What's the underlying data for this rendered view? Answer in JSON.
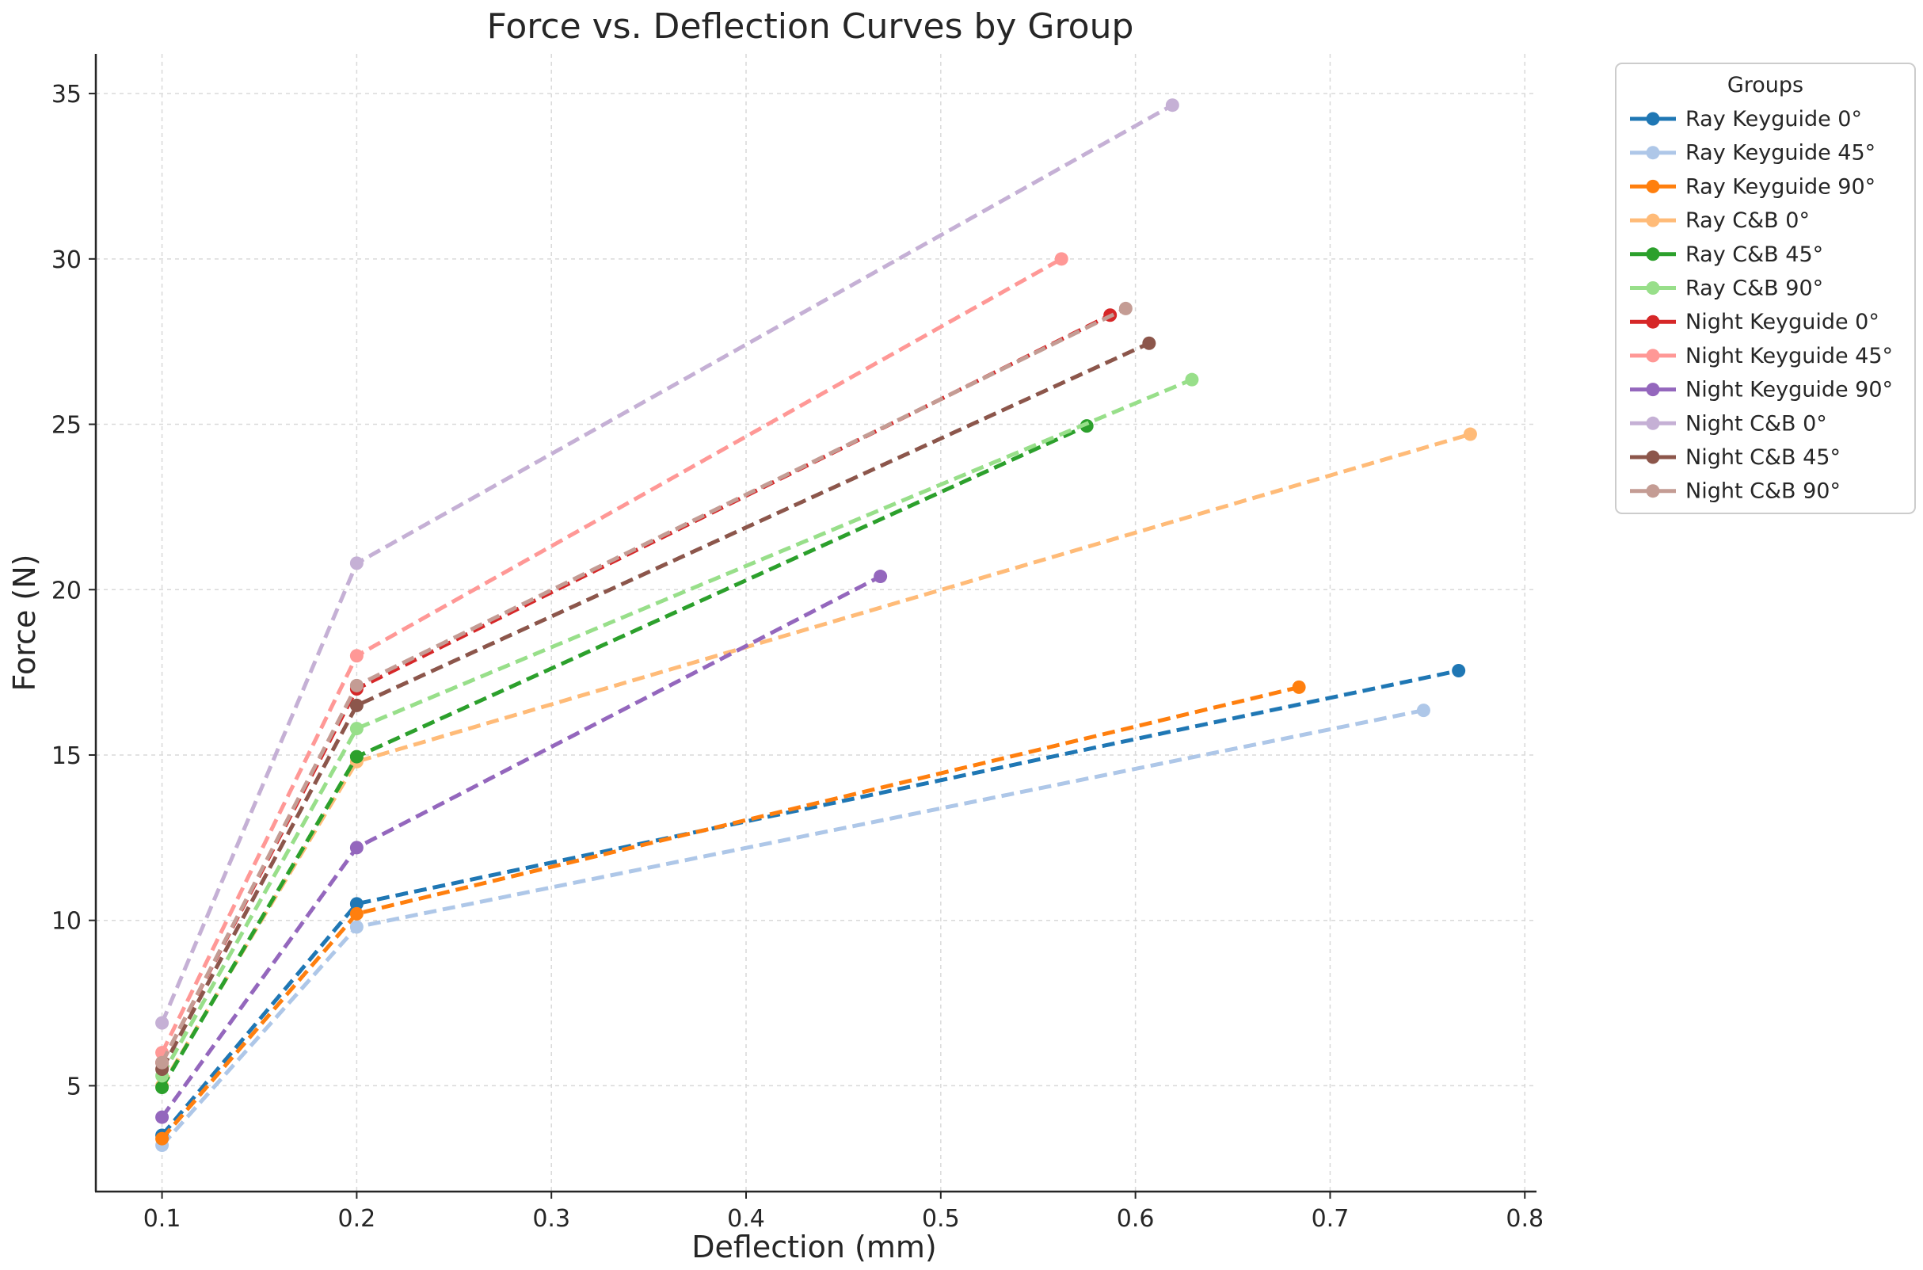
{
  "chart_data": {
    "type": "line",
    "title": "Force vs. Deflection Curves by Group",
    "xlabel": "Deflection (mm)",
    "ylabel": "Force (N)",
    "xlim": [
      0.066,
      0.806
    ],
    "ylim": [
      1.8,
      36.2
    ],
    "xticks": [
      0.1,
      0.2,
      0.3,
      0.4,
      0.5,
      0.6,
      0.7,
      0.8
    ],
    "xtick_labels": [
      "0.1",
      "0.2",
      "0.3",
      "0.4",
      "0.5",
      "0.6",
      "0.7",
      "0.8"
    ],
    "yticks": [
      5,
      10,
      15,
      20,
      25,
      30,
      35
    ],
    "ytick_labels": [
      "5",
      "10",
      "15",
      "20",
      "25",
      "30",
      "35"
    ],
    "grid": true,
    "legend": {
      "title": "Groups",
      "position": "right-top"
    },
    "series": [
      {
        "name": "Ray Keyguide 0°",
        "color": "#1f77b4",
        "x": [
          0.1,
          0.2,
          0.766
        ],
        "y": [
          3.5,
          10.5,
          17.55
        ]
      },
      {
        "name": "Ray Keyguide 45°",
        "color": "#aec7e8",
        "x": [
          0.1,
          0.2,
          0.748
        ],
        "y": [
          3.2,
          9.8,
          16.35
        ]
      },
      {
        "name": "Ray Keyguide 90°",
        "color": "#ff7f0e",
        "x": [
          0.1,
          0.2,
          0.684
        ],
        "y": [
          3.4,
          10.2,
          17.05
        ]
      },
      {
        "name": "Ray C&B 0°",
        "color": "#ffbb78",
        "x": [
          0.1,
          0.2,
          0.772
        ],
        "y": [
          5.0,
          14.8,
          24.7
        ]
      },
      {
        "name": "Ray C&B 45°",
        "color": "#2ca02c",
        "x": [
          0.1,
          0.2,
          0.575
        ],
        "y": [
          4.95,
          14.95,
          24.95
        ]
      },
      {
        "name": "Ray C&B 90°",
        "color": "#98df8a",
        "x": [
          0.1,
          0.2,
          0.629
        ],
        "y": [
          5.3,
          15.8,
          26.35
        ]
      },
      {
        "name": "Night Keyguide 0°",
        "color": "#d62728",
        "x": [
          0.1,
          0.2,
          0.587
        ],
        "y": [
          5.7,
          17.0,
          28.3
        ]
      },
      {
        "name": "Night Keyguide 45°",
        "color": "#ff9896",
        "x": [
          0.1,
          0.2,
          0.562
        ],
        "y": [
          6.0,
          18.0,
          30.0
        ]
      },
      {
        "name": "Night Keyguide 90°",
        "color": "#9467bd",
        "x": [
          0.1,
          0.2,
          0.469
        ],
        "y": [
          4.05,
          12.2,
          20.4
        ]
      },
      {
        "name": "Night C&B 0°",
        "color": "#c5b0d5",
        "x": [
          0.1,
          0.2,
          0.619
        ],
        "y": [
          6.9,
          20.8,
          34.65
        ]
      },
      {
        "name": "Night C&B 45°",
        "color": "#8c564b",
        "x": [
          0.1,
          0.2,
          0.607
        ],
        "y": [
          5.5,
          16.5,
          27.45
        ]
      },
      {
        "name": "Night C&B 90°",
        "color": "#c49c94",
        "x": [
          0.1,
          0.2,
          0.595
        ],
        "y": [
          5.7,
          17.1,
          28.5
        ]
      }
    ]
  }
}
